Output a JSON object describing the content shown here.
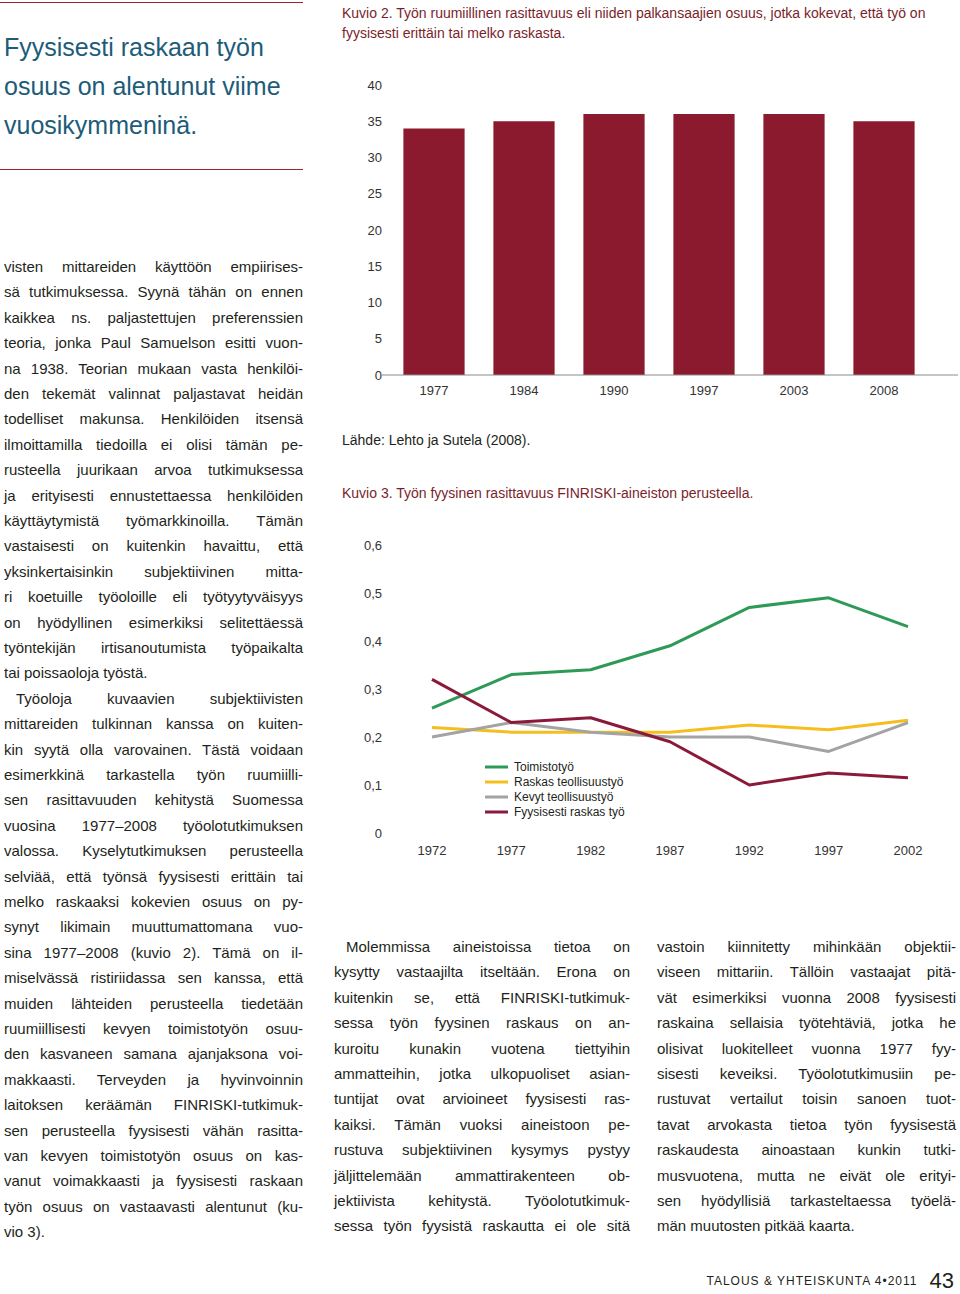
{
  "sidebar": {
    "title_lines": [
      "Fyysisesti raskaan työn",
      "osuus on alentunut viime",
      "vuosikymmeninä."
    ]
  },
  "columns": [
    {
      "paragraphs": [
        {
          "lines": [
            "visten mittareiden käyttöön empiirises-",
            "sä tutkimuksessa. Syynä tähän on ennen",
            "kaikkea ns. paljastettujen preferenssien",
            "teoria, jonka Paul Samuelson esitti vuon-",
            "na 1938. Teorian mukaan vasta henkilöi-",
            "den tekemät valinnat paljastavat heidän",
            "todelliset makunsa. Henkilöiden itsensä",
            "ilmoittamilla tiedoilla ei olisi tämän pe-",
            "rusteella juurikaan arvoa tutkimuksessa",
            "ja erityisesti ennustettaessa henkilöiden",
            "käyttäytymistä työmarkkinoilla. Tämän",
            "vastaisesti on kuitenkin havaittu, että",
            "yksinkertaisinkin subjektiivinen mitta-",
            "ri koetuille työoloille eli työtyytyväisyys",
            "on hyödyllinen esimerkiksi selitettäessä",
            "työntekijän irtisanoutumista työpaikalta",
            "tai poissaoloja työstä."
          ]
        },
        {
          "lines": [
            "Työoloja kuvaavien subjektiivisten",
            "mittareiden tulkinnan kanssa on kuiten-",
            "kin syytä olla varovainen. Tästä voidaan",
            "esimerkkinä tarkastella työn ruumiilli-",
            "sen rasittavuuden kehitystä Suomessa",
            "vuosina 1977–2008 työolotutkimuksen",
            "valossa. Kyselytutkimuksen perusteella",
            "selviää, että työnsä fyysisesti erittäin tai",
            "melko raskaaksi kokevien osuus on py-",
            "synyt likimain muuttumattomana vuo-",
            "sina 1977–2008 (kuvio 2). Tämä on il-",
            "miselvässä ristiriidassa sen kanssa, että",
            "muiden lähteiden perusteella tiedetään",
            "ruumiillisesti kevyen toimistotyön osuu-",
            "den kasvaneen samana ajanjaksona voi-",
            "makkaasti. Terveyden ja hyvinvoinnin",
            "laitoksen keräämän FINRISKI-tutkimuk-",
            "sen perusteella fyysisesti vähän rasitta-",
            "van kevyen toimistotyön osuus on kas-",
            "vanut voimakkaasti ja fyysisesti raskaan",
            "työn osuus on vastaavasti alentunut (ku-",
            "vio 3)."
          ]
        }
      ]
    },
    {
      "paragraphs": [
        {
          "lines": [
            "Molemmissa aineistoissa tietoa on",
            "kysytty vastaajilta itseltään. Erona on",
            "kuitenkin se, että FINRISKI-tutkimuk-",
            "sessa työn fyysinen raskaus on an-",
            "kuroitu kunakin vuotena tiettyihin",
            "ammatteihin, jotka ulkopuoliset asian-",
            "tuntijat ovat arvioineet fyysisesti ras-",
            "kaiksi. Tämän vuoksi aineistoon pe-",
            "rustuva subjektiivinen kysymys pystyy",
            "jäljittelemään ammattirakenteen ob-",
            "jektiivista kehitystä. Työolotutkimuk-",
            "sessa työn fyysistä raskautta ei ole sitä"
          ]
        }
      ]
    },
    {
      "paragraphs": [
        {
          "lines": [
            "vastoin kiinnitetty mihinkään objektii-",
            "viseen mittariin. Tällöin vastaajat pitä-",
            "vät esimerkiksi vuonna 2008 fyysisesti",
            "raskaina sellaisia työtehtäviä, jotka he",
            "olisivat luokitelleet vuonna 1977 fyy-",
            "sisesti keveiksi. Työolotutkimusiin pe-",
            "rustuvat vertailut toisin sanoen tuot-",
            "tavat arvokasta tietoa työn fyysisestä",
            "raskaudesta ainoastaan kunkin tutki-",
            "musvuotena, mutta ne eivät ole erityi-",
            "sen hyödyllisiä tarkasteltaessa työelä-",
            "män muutosten pitkää kaarta."
          ]
        }
      ]
    }
  ],
  "chart_data": [
    {
      "type": "bar",
      "title": "Kuvio 2. Työn ruumiillinen rasittavuus eli niiden palkansaajien osuus, jotka kokevat, että työ on fyysisesti erittäin tai melko raskasta.",
      "categories": [
        "1977",
        "1984",
        "1990",
        "1997",
        "2003",
        "2008"
      ],
      "values": [
        34,
        35,
        36,
        36,
        36,
        35
      ],
      "color": "#8b1a2e",
      "ylim": [
        0,
        40
      ],
      "yticks": [
        0,
        5,
        10,
        15,
        20,
        25,
        30,
        35,
        40
      ],
      "grid": false,
      "source": "Lähde: Lehto ja Sutela (2008)."
    },
    {
      "type": "line",
      "title": "Kuvio 3. Työn fyysinen rasittavuus FINRISKI-aineiston perusteella.",
      "categories": [
        "1972",
        "1977",
        "1982",
        "1987",
        "1992",
        "1997",
        "2002"
      ],
      "series": [
        {
          "name": "Toimistotyö",
          "color": "#2e9a57",
          "values": [
            0.26,
            0.33,
            0.34,
            0.39,
            0.47,
            0.49,
            0.43
          ]
        },
        {
          "name": "Raskas teollisuustyö",
          "color": "#f5be1e",
          "values": [
            0.22,
            0.21,
            0.21,
            0.21,
            0.225,
            0.215,
            0.235
          ]
        },
        {
          "name": "Kevyt teollisuustyö",
          "color": "#a3a3a3",
          "values": [
            0.2,
            0.23,
            0.21,
            0.2,
            0.2,
            0.17,
            0.23
          ]
        },
        {
          "name": "Fyysisesti raskas työ",
          "color": "#8b1a3a",
          "values": [
            0.32,
            0.23,
            0.24,
            0.19,
            0.1,
            0.125,
            0.115
          ]
        }
      ],
      "ylim": [
        0,
        0.6
      ],
      "yticks": [
        0,
        {
          "value": 0.1,
          "label": "0,1"
        },
        {
          "value": 0.2,
          "label": "0,2"
        },
        {
          "value": 0.3,
          "label": "0,3"
        },
        {
          "value": 0.4,
          "label": "0,4"
        },
        {
          "value": 0.5,
          "label": "0,5"
        },
        {
          "value": 0.6,
          "label": "0,6"
        }
      ],
      "grid": false,
      "legend": "bottom"
    }
  ],
  "footer": {
    "journal": "TALOUS & YHTEISKUNTA 4•2011",
    "page": "43"
  }
}
